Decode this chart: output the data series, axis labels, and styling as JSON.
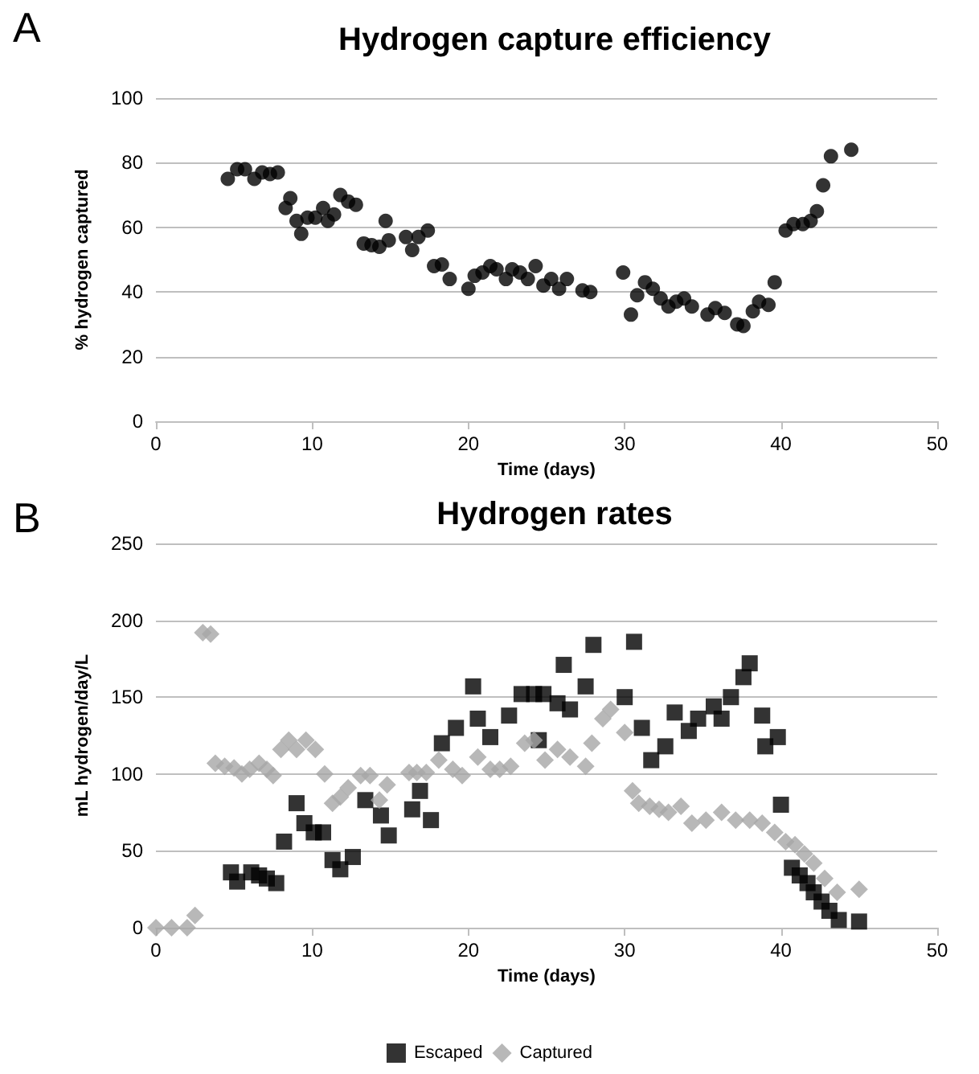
{
  "chart_data": [
    {
      "type": "scatter",
      "title": "Hydrogen capture efficiency",
      "annotations": [
        "A"
      ],
      "xlabel": "Time (days)",
      "ylabel": "% hydrogen captured",
      "xlim": [
        0,
        50
      ],
      "xticks": [
        0,
        10,
        20,
        30,
        40,
        50
      ],
      "ylim": [
        0,
        100
      ],
      "yticks": [
        0,
        20,
        40,
        60,
        80,
        100
      ],
      "grid": "y",
      "legend": false,
      "marker": "circle",
      "series": [
        {
          "color": "#000000",
          "x": [
            4.6,
            5.2,
            5.7,
            6.3,
            6.8,
            7.3,
            7.8,
            8.3,
            8.6,
            9.0,
            9.3,
            9.7,
            10.2,
            10.7,
            11.0,
            11.4,
            11.8,
            12.3,
            12.8,
            13.3,
            13.8,
            14.3,
            14.7,
            14.9,
            16.0,
            16.4,
            16.8,
            17.4,
            17.8,
            18.3,
            18.8,
            20.0,
            20.4,
            20.9,
            21.4,
            21.8,
            22.4,
            22.8,
            23.3,
            23.8,
            24.3,
            24.8,
            25.3,
            25.8,
            26.3,
            27.3,
            27.8,
            29.9,
            30.4,
            30.8,
            31.3,
            31.8,
            32.3,
            32.8,
            33.3,
            33.8,
            34.3,
            35.3,
            35.8,
            36.4,
            37.2,
            37.6,
            38.2,
            38.6,
            39.2,
            39.6,
            40.3,
            40.8,
            41.4,
            41.9,
            42.3,
            42.7,
            43.2,
            44.5
          ],
          "values": [
            75,
            78,
            78,
            75,
            77,
            76.5,
            77,
            66,
            69,
            62,
            58,
            63,
            63,
            66,
            62,
            64,
            70,
            68,
            67,
            55,
            54.5,
            54,
            62,
            56,
            57,
            53,
            57,
            59,
            48,
            48.5,
            44,
            41,
            45,
            46,
            48,
            47,
            44,
            47,
            46,
            44,
            48,
            42,
            44,
            41,
            44,
            40.5,
            40,
            46,
            33,
            39,
            43,
            41,
            38,
            35.5,
            37,
            38,
            35.5,
            33,
            35,
            33.5,
            30,
            29.5,
            34,
            37,
            36,
            43,
            59,
            61,
            61,
            62,
            65,
            73,
            82,
            84
          ]
        }
      ]
    },
    {
      "type": "scatter",
      "title": "Hydrogen rates",
      "annotations": [
        "B"
      ],
      "xlabel": "Time (days)",
      "ylabel": "mL hydrogen/day/L",
      "xlim": [
        0,
        50
      ],
      "xticks": [
        0,
        10,
        20,
        30,
        40,
        50
      ],
      "ylim": [
        0,
        250
      ],
      "yticks": [
        0,
        50,
        100,
        150,
        200,
        250
      ],
      "grid": "y",
      "legend": "bottom",
      "series": [
        {
          "name": "Escaped",
          "color": "#000000",
          "marker": "square",
          "x": [
            4.8,
            5.2,
            6.1,
            6.6,
            7.1,
            7.7,
            8.2,
            9.0,
            9.5,
            10.1,
            10.7,
            11.3,
            11.8,
            12.6,
            13.4,
            14.4,
            14.9,
            16.4,
            16.9,
            17.6,
            18.3,
            19.2,
            20.3,
            20.6,
            21.4,
            22.6,
            23.4,
            24.2,
            24.5,
            24.8,
            25.7,
            26.1,
            26.5,
            27.5,
            28.0,
            30.0,
            30.6,
            31.1,
            31.7,
            32.6,
            33.2,
            34.1,
            34.7,
            35.7,
            36.2,
            36.8,
            37.6,
            38.0,
            38.8,
            39.0,
            39.8,
            40.0,
            40.7,
            41.2,
            41.7,
            42.1,
            42.6,
            43.1,
            43.7,
            45.0
          ],
          "values": [
            36,
            30,
            36,
            34,
            32,
            29,
            56,
            81,
            68,
            62,
            62,
            44,
            38,
            46,
            83,
            73,
            60,
            77,
            89,
            70,
            120,
            130,
            157,
            136,
            124,
            138,
            152,
            152,
            122,
            152,
            146,
            171,
            142,
            157,
            184,
            150,
            186,
            130,
            109,
            118,
            140,
            128,
            136,
            144,
            136,
            150,
            163,
            172,
            138,
            118,
            124,
            80,
            39,
            34,
            29,
            23,
            17,
            11,
            5,
            4
          ]
        },
        {
          "name": "Captured",
          "color": "#a6a6a6",
          "marker": "diamond",
          "x": [
            0,
            1,
            2,
            2.5,
            3.0,
            3.5,
            3.8,
            4.4,
            5.0,
            5.5,
            6.0,
            6.6,
            7.1,
            7.5,
            8.0,
            8.5,
            9.0,
            9.6,
            10.2,
            10.8,
            11.3,
            11.8,
            12.3,
            13.1,
            13.7,
            14.3,
            14.8,
            16.2,
            16.7,
            17.3,
            18.1,
            19.0,
            19.6,
            20.6,
            21.4,
            22.0,
            22.7,
            23.6,
            24.2,
            24.9,
            25.7,
            26.5,
            27.5,
            27.9,
            28.6,
            29.1,
            30.0,
            30.5,
            30.9,
            31.6,
            32.2,
            32.8,
            33.6,
            34.3,
            35.2,
            36.2,
            37.1,
            38.0,
            38.8,
            39.6,
            40.3,
            40.9,
            41.5,
            42.1,
            42.8,
            43.6,
            45.0
          ],
          "values": [
            0,
            0,
            0,
            8,
            192,
            191,
            107,
            105,
            104,
            100,
            103,
            107,
            103,
            99,
            116,
            122,
            116,
            122,
            116,
            100,
            81,
            85,
            91,
            99,
            99,
            83,
            93,
            101,
            101,
            101,
            109,
            103,
            99,
            111,
            103,
            103,
            105,
            120,
            122,
            109,
            116,
            111,
            105,
            120,
            136,
            142,
            127,
            89,
            81,
            79,
            77,
            75,
            79,
            68,
            70,
            75,
            70,
            70,
            68,
            62,
            56,
            54,
            48,
            42,
            32,
            23,
            25
          ]
        }
      ]
    }
  ]
}
